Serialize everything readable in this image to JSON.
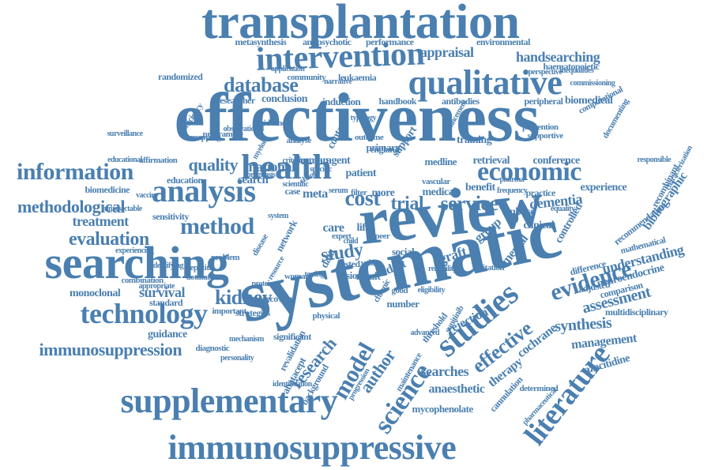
{
  "colors": {
    "word": "#4a7fb0",
    "background": "#ffffff"
  },
  "words": [
    "transplantation",
    "intervention",
    "effectiveness",
    "qualitative",
    "database",
    "information",
    "analysis",
    "health",
    "economic",
    "review",
    "systematic",
    "searching",
    "supplementary",
    "immunosuppressive",
    "immunosuppression",
    "technology",
    "methodological",
    "evaluation",
    "treatment",
    "method",
    "kidney",
    "survival",
    "monoclonal",
    "guidance",
    "studies",
    "literature",
    "evidence",
    "assessment",
    "science",
    "author",
    "model",
    "research",
    "study",
    "cost",
    "dementia",
    "bibliographic",
    "recombinant",
    "experience",
    "understanding",
    "neuroendocrine",
    "synthesis",
    "management",
    "effective",
    "searches",
    "anaesthetic",
    "mycophenolate",
    "cochrane",
    "therapy",
    "appraisal",
    "handsearching",
    "performance",
    "environmental",
    "antipsychotic",
    "metasynthesis",
    "community",
    "leukaemia",
    "randomized",
    "researcher",
    "conclusion",
    "handbook",
    "antibodies",
    "peripheral",
    "biomedical",
    "haematopoietic",
    "induction",
    "efficiency",
    "mapping",
    "quality",
    "national",
    "search",
    "human",
    "agent",
    "medline",
    "retrieval",
    "conference",
    "education",
    "biomedicine",
    "sensitivity",
    "service",
    "trial",
    "meta",
    "embase",
    "practice",
    "benefit",
    "clinical",
    "graft",
    "mental",
    "controlled",
    "recommendation",
    "comparison",
    "multidisciplinary",
    "azacitidine",
    "rejection",
    "threshold",
    "adult",
    "care",
    "result",
    "recovery",
    "standard",
    "strategies",
    "significant",
    "background",
    "abatacept",
    "revalidation",
    "diagnostic",
    "combination",
    "important",
    "physical",
    "dotatate",
    "hepatitis",
    "network",
    "data",
    "fusion",
    "number",
    "group",
    "support",
    "primary",
    "contact",
    "training",
    "guideline",
    "analyse",
    "outcome",
    "medical",
    "more",
    "tested",
    "life",
    "social",
    "difference",
    "adjusted",
    "citation",
    "cannulation",
    "determined",
    "maintenance",
    "progression",
    "woman",
    "resource",
    "patient",
    "case",
    "filter",
    "serum",
    "england",
    "mathematical",
    "prevention",
    "supportive",
    "computational",
    "documenting",
    "perspective",
    "inequalities",
    "narrative",
    "application",
    "prognosis",
    "identifying",
    "experiencing",
    "surveillance",
    "affirmation",
    "educational",
    "eligibility",
    "specific",
    "criterion",
    "change",
    "peer",
    "child",
    "vascular",
    "pharma",
    "frequency",
    "equality",
    "responsible",
    "characterization",
    "commissioning",
    "myeloid",
    "programme",
    "problem",
    "value",
    "good",
    "chronic",
    "disease",
    "protein",
    "system",
    "scientific",
    "expert",
    "reliability",
    "sunitinib",
    "advanced",
    "pharmaceutical",
    "enhancement",
    "typology",
    "unresectable",
    "appropriate",
    "observational",
    "vaccine",
    "testing",
    "personality",
    "mechanism",
    "identification"
  ]
}
